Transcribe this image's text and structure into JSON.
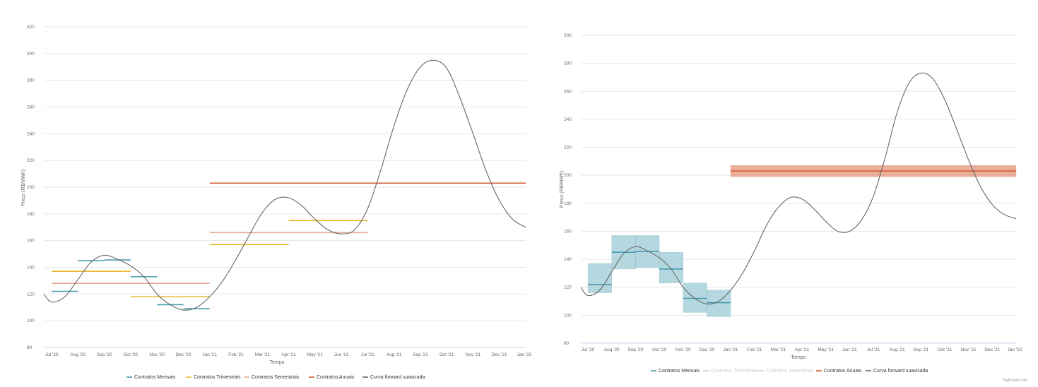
{
  "chart_data": [
    {
      "type": "line",
      "xlabel": "Tempo",
      "ylabel": "Preço (R$/MWh)",
      "ylim": [
        80,
        320
      ],
      "yticks": [
        80,
        100,
        120,
        140,
        160,
        180,
        200,
        220,
        240,
        260,
        280,
        300,
        320
      ],
      "x_categories": [
        "Jul '20",
        "Aug '20",
        "Sep '20",
        "Oct '20",
        "Nov '20",
        "Dec '20",
        "Jan '21",
        "Feb '21",
        "Mar '21",
        "Apr '21",
        "May '21",
        "Jun '21",
        "Jul '21",
        "Aug '21",
        "Sep '21",
        "Oct '21",
        "Nov '21",
        "Dec '21",
        "Jan '22"
      ],
      "xlim": [
        -0.3,
        18
      ],
      "grid": true,
      "legend_position": "bottom-center",
      "legend": [
        {
          "name": "Contratos Mensais",
          "color": "#4a9bb0",
          "hidden": false
        },
        {
          "name": "Contratos Trimestrais",
          "color": "#e8b931",
          "hidden": false
        },
        {
          "name": "Contratos Semestrais",
          "color": "#e9ab94",
          "hidden": false
        },
        {
          "name": "Contratos Anuais",
          "color": "#d25c33",
          "hidden": false
        },
        {
          "name": "Curva forward suavizada",
          "color": "#666666",
          "hidden": false
        }
      ],
      "contracts": [
        {
          "series": "Contratos Mensais",
          "start": 0,
          "end": 1,
          "value": 122
        },
        {
          "series": "Contratos Mensais",
          "start": 1,
          "end": 2,
          "value": 145
        },
        {
          "series": "Contratos Mensais",
          "start": 2,
          "end": 3,
          "value": 145.5
        },
        {
          "series": "Contratos Mensais",
          "start": 3,
          "end": 4,
          "value": 133
        },
        {
          "series": "Contratos Mensais",
          "start": 4,
          "end": 5,
          "value": 112
        },
        {
          "series": "Contratos Mensais",
          "start": 5,
          "end": 6,
          "value": 109
        },
        {
          "series": "Contratos Trimestrais",
          "start": 0,
          "end": 3,
          "value": 137
        },
        {
          "series": "Contratos Trimestrais",
          "start": 3,
          "end": 6,
          "value": 118
        },
        {
          "series": "Contratos Trimestrais",
          "start": 6,
          "end": 9,
          "value": 157
        },
        {
          "series": "Contratos Trimestrais",
          "start": 9,
          "end": 12,
          "value": 175
        },
        {
          "series": "Contratos Semestrais",
          "start": 0,
          "end": 6,
          "value": 128
        },
        {
          "series": "Contratos Semestrais",
          "start": 6,
          "end": 12,
          "value": 166
        },
        {
          "series": "Contratos Anuais",
          "start": 6,
          "end": 18,
          "value": 203
        }
      ],
      "forward_curve": {
        "series": "Curva forward suavizada",
        "x": [
          -0.3,
          0,
          0.5,
          1,
          1.5,
          2,
          2.5,
          3,
          3.5,
          4,
          4.5,
          5,
          5.5,
          6,
          6.5,
          7,
          7.5,
          8,
          8.5,
          9,
          9.5,
          10,
          10.5,
          11,
          11.5,
          12,
          12.5,
          13,
          13.5,
          14,
          14.5,
          15,
          15.5,
          16,
          16.5,
          17,
          17.5,
          18
        ],
        "y": [
          120,
          114,
          118,
          131,
          144,
          149,
          146,
          141,
          133,
          120,
          112,
          108,
          110,
          118,
          130,
          146,
          164,
          181,
          191,
          192,
          186,
          176,
          168,
          165,
          168,
          184,
          213,
          246,
          273,
          290,
          295,
          289,
          267,
          240,
          212,
          190,
          176,
          170
        ]
      }
    },
    {
      "type": "line",
      "xlabel": "Tempo",
      "ylabel": "Preço (R$/MWh)",
      "ylim": [
        80,
        300
      ],
      "yticks": [
        80,
        100,
        120,
        140,
        160,
        180,
        200,
        220,
        240,
        260,
        280,
        300
      ],
      "x_categories": [
        "Jul '20",
        "Aug '20",
        "Sep '20",
        "Oct '20",
        "Nov '20",
        "Dec '20",
        "Jan '21",
        "Feb '21",
        "Mar '21",
        "Apr '21",
        "May '21",
        "Jun '21",
        "Jul '21",
        "Aug '21",
        "Sep '21",
        "Oct '21",
        "Nov '21",
        "Dec '21",
        "Jan '22"
      ],
      "xlim": [
        -0.3,
        18
      ],
      "grid": true,
      "legend_position": "bottom-center",
      "legend": [
        {
          "name": "Contratos Mensais",
          "color": "#4a9bb0",
          "hidden": false
        },
        {
          "name": "Contratos Trimestrais",
          "color": "#cccccc",
          "hidden": true
        },
        {
          "name": "Contratos Semestrais",
          "color": "#cccccc",
          "hidden": true
        },
        {
          "name": "Contratos Anuais",
          "color": "#d25c33",
          "hidden": false
        },
        {
          "name": "Curva forward suavizada",
          "color": "#666666",
          "hidden": false
        }
      ],
      "contracts": [
        {
          "series": "Contratos Mensais",
          "start": 0,
          "end": 1,
          "value": 122,
          "band": [
            116,
            137
          ]
        },
        {
          "series": "Contratos Mensais",
          "start": 1,
          "end": 2,
          "value": 145,
          "band": [
            133,
            157
          ]
        },
        {
          "series": "Contratos Mensais",
          "start": 2,
          "end": 3,
          "value": 145.5,
          "band": [
            134,
            157
          ]
        },
        {
          "series": "Contratos Mensais",
          "start": 3,
          "end": 4,
          "value": 133,
          "band": [
            123,
            145
          ]
        },
        {
          "series": "Contratos Mensais",
          "start": 4,
          "end": 5,
          "value": 112,
          "band": [
            102,
            123
          ]
        },
        {
          "series": "Contratos Mensais",
          "start": 5,
          "end": 6,
          "value": 109,
          "band": [
            99,
            118
          ]
        },
        {
          "series": "Contratos Anuais",
          "start": 6,
          "end": 18,
          "value": 203,
          "band": [
            199,
            207
          ]
        }
      ],
      "forward_curve": {
        "series": "Curva forward suavizada",
        "x": [
          -0.3,
          0,
          0.5,
          1,
          1.5,
          2,
          2.5,
          3,
          3.5,
          4,
          4.5,
          5,
          5.5,
          6,
          6.5,
          7,
          7.5,
          8,
          8.5,
          9,
          9.5,
          10,
          10.5,
          11,
          11.5,
          12,
          12.5,
          13,
          13.5,
          14,
          14.5,
          15,
          15.5,
          16,
          16.5,
          17,
          17.5,
          18
        ],
        "y": [
          120,
          114,
          118,
          131,
          144,
          149,
          146,
          141,
          133,
          120,
          112,
          108,
          110,
          118,
          130,
          146,
          164,
          177,
          184,
          183,
          176,
          167,
          160,
          160,
          168,
          185,
          213,
          245,
          266,
          273,
          269,
          254,
          233,
          211,
          192,
          179,
          172,
          169
        ]
      },
      "credit": "Highcharts.com"
    }
  ]
}
